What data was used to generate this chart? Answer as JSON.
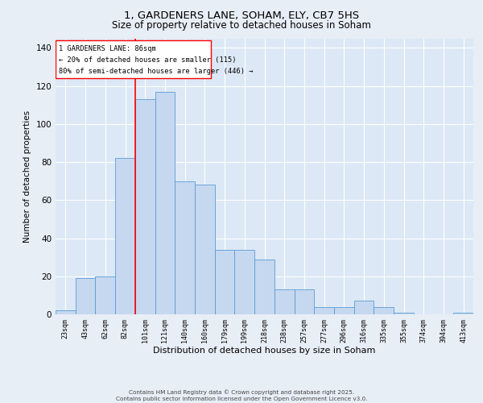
{
  "title_line1": "1, GARDENERS LANE, SOHAM, ELY, CB7 5HS",
  "title_line2": "Size of property relative to detached houses in Soham",
  "xlabel": "Distribution of detached houses by size in Soham",
  "ylabel": "Number of detached properties",
  "categories": [
    "23sqm",
    "43sqm",
    "62sqm",
    "82sqm",
    "101sqm",
    "121sqm",
    "140sqm",
    "160sqm",
    "179sqm",
    "199sqm",
    "218sqm",
    "238sqm",
    "257sqm",
    "277sqm",
    "296sqm",
    "316sqm",
    "335sqm",
    "355sqm",
    "374sqm",
    "394sqm",
    "413sqm"
  ],
  "values": [
    2,
    19,
    20,
    82,
    113,
    117,
    70,
    68,
    34,
    34,
    29,
    13,
    13,
    4,
    4,
    7,
    4,
    1,
    0,
    0,
    1
  ],
  "bar_color": "#c5d8f0",
  "bar_edge_color": "#5b9bd5",
  "red_line_index": 3.5,
  "annotation_title": "1 GARDENERS LANE: 86sqm",
  "annotation_line1": "← 20% of detached houses are smaller (115)",
  "annotation_line2": "80% of semi-detached houses are larger (446) →",
  "footer_line1": "Contains HM Land Registry data © Crown copyright and database right 2025.",
  "footer_line2": "Contains public sector information licensed under the Open Government Licence v3.0.",
  "ylim": [
    0,
    145
  ],
  "background_color": "#e8eef6",
  "plot_background_color": "#dce8f5"
}
